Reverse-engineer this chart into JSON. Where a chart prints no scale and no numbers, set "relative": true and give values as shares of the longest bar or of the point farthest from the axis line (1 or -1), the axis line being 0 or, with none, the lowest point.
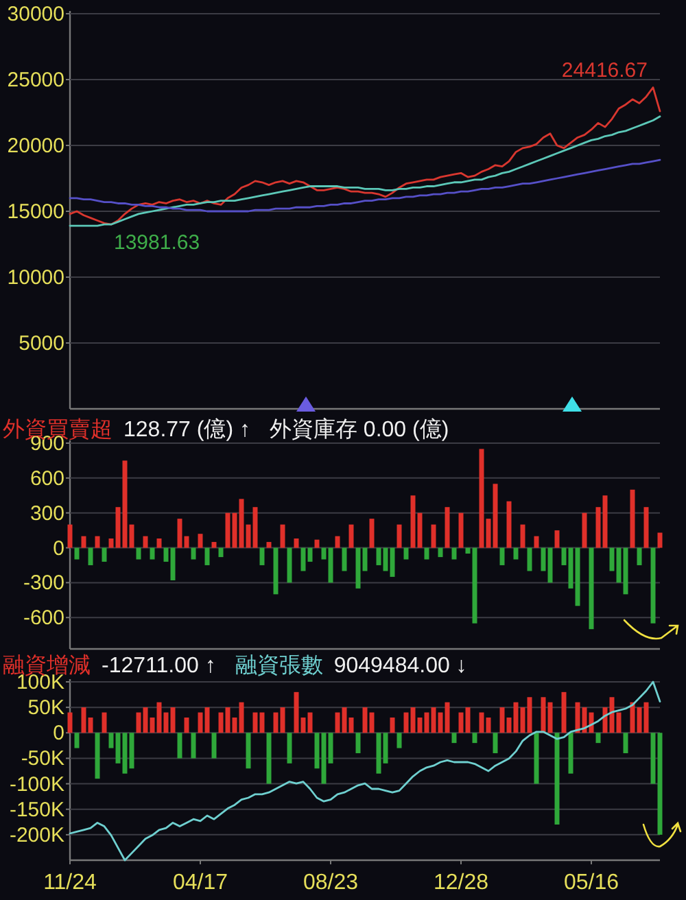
{
  "chart_data": [
    {
      "type": "line",
      "categories": [
        null,
        null,
        null,
        null,
        null,
        null,
        null,
        null,
        null,
        null,
        null,
        null,
        null,
        null,
        null,
        null,
        null,
        null,
        null,
        null,
        null,
        null,
        null,
        null,
        null,
        null,
        null,
        null,
        null,
        null,
        null,
        null,
        null,
        null,
        null,
        null,
        null,
        null,
        null,
        null,
        null,
        null,
        null,
        null,
        null,
        null,
        null,
        null,
        null,
        null,
        null,
        null,
        null,
        null,
        null,
        null,
        null,
        null,
        null,
        null,
        null,
        null,
        null,
        null,
        null,
        null,
        null,
        null,
        null,
        null,
        null,
        null,
        null,
        null,
        null,
        null,
        null,
        null,
        null,
        null,
        null,
        null,
        null,
        null,
        null,
        null,
        null
      ],
      "ylim": [
        0,
        30000
      ],
      "yticks": [
        5000,
        10000,
        15000,
        20000,
        25000,
        30000
      ],
      "grid": "y",
      "tick_labels": "y",
      "annotations": [
        "24416.67",
        "13981.63"
      ],
      "series": [
        {
          "color": "#d9372f",
          "values": [
            14800,
            15000,
            14700,
            14500,
            14300,
            14100,
            14000,
            14300,
            14800,
            15200,
            15500,
            15600,
            15500,
            15700,
            15600,
            15800,
            15900,
            15700,
            15800,
            15600,
            15800,
            15600,
            15500,
            16000,
            16300,
            16800,
            17000,
            17300,
            17200,
            17000,
            17200,
            17300,
            17100,
            17300,
            17200,
            16900,
            16600,
            16600,
            16700,
            16800,
            16700,
            16500,
            16500,
            16400,
            16400,
            16300,
            16100,
            16400,
            16800,
            17100,
            17200,
            17300,
            17400,
            17400,
            17600,
            17700,
            17800,
            17900,
            17600,
            17700,
            18000,
            18200,
            18500,
            18400,
            18800,
            19500,
            19800,
            19900,
            20100,
            20600,
            20900,
            20000,
            19800,
            20200,
            20600,
            20800,
            21200,
            21700,
            21400,
            22000,
            22800,
            23100,
            23500,
            23200,
            23700,
            24400,
            22600
          ]
        },
        {
          "color": "#5cc8b8",
          "values": [
            13900,
            13900,
            13900,
            13900,
            13900,
            14000,
            14000,
            14200,
            14400,
            14600,
            14800,
            14900,
            15000,
            15100,
            15200,
            15300,
            15400,
            15500,
            15500,
            15600,
            15700,
            15700,
            15800,
            15800,
            15800,
            15900,
            16000,
            16100,
            16200,
            16300,
            16400,
            16500,
            16600,
            16700,
            16800,
            16900,
            16900,
            16900,
            16900,
            16900,
            16800,
            16800,
            16800,
            16700,
            16700,
            16700,
            16600,
            16600,
            16700,
            16700,
            16800,
            16800,
            16900,
            16900,
            17000,
            17100,
            17200,
            17200,
            17300,
            17400,
            17400,
            17600,
            17700,
            17900,
            18000,
            18200,
            18400,
            18600,
            18800,
            19000,
            19200,
            19400,
            19600,
            19800,
            20000,
            20200,
            20400,
            20500,
            20700,
            20800,
            21000,
            21100,
            21300,
            21500,
            21700,
            21900,
            22200
          ]
        },
        {
          "color": "#5650c8",
          "values": [
            16000,
            16000,
            15900,
            15900,
            15800,
            15700,
            15700,
            15600,
            15600,
            15500,
            15500,
            15400,
            15400,
            15300,
            15300,
            15200,
            15200,
            15100,
            15100,
            15100,
            15000,
            15000,
            15000,
            15000,
            15000,
            15000,
            15000,
            15100,
            15100,
            15100,
            15200,
            15200,
            15200,
            15300,
            15300,
            15300,
            15400,
            15400,
            15500,
            15500,
            15600,
            15600,
            15700,
            15800,
            15800,
            15900,
            15900,
            16000,
            16000,
            16100,
            16100,
            16200,
            16200,
            16300,
            16300,
            16400,
            16400,
            16500,
            16500,
            16600,
            16700,
            16700,
            16800,
            16800,
            16900,
            17000,
            17100,
            17100,
            17200,
            17300,
            17400,
            17500,
            17600,
            17700,
            17800,
            17900,
            18000,
            18100,
            18200,
            18300,
            18400,
            18500,
            18600,
            18600,
            18700,
            18800,
            18900
          ]
        }
      ]
    },
    {
      "type": "bar",
      "categories": [
        null,
        null,
        null,
        null,
        null,
        null,
        null,
        null,
        null,
        null,
        null,
        null,
        null,
        null,
        null,
        null,
        null,
        null,
        null,
        null,
        null,
        null,
        null,
        null,
        null,
        null,
        null,
        null,
        null,
        null,
        null,
        null,
        null,
        null,
        null,
        null,
        null,
        null,
        null,
        null,
        null,
        null,
        null,
        null,
        null,
        null,
        null,
        null,
        null,
        null,
        null,
        null,
        null,
        null,
        null,
        null,
        null,
        null,
        null,
        null,
        null,
        null,
        null,
        null,
        null,
        null,
        null,
        null,
        null,
        null,
        null,
        null,
        null,
        null,
        null,
        null,
        null,
        null,
        null,
        null,
        null,
        null,
        null,
        null,
        null,
        null,
        null
      ],
      "ylim": [
        -870,
        900
      ],
      "yticks": [
        -600,
        -300,
        0,
        300,
        600,
        900
      ],
      "grid": "y",
      "tick_labels": "y",
      "legend": "top left",
      "annotations": [
        "128.77 (億) ↑",
        "外資庫存 0.00 (億)"
      ],
      "series": [
        {
          "name": "外資買賣超",
          "color": "#e0302a",
          "values": [
            200,
            -100,
            100,
            -150,
            100,
            -120,
            80,
            350,
            750,
            200,
            -100,
            100,
            -100,
            80,
            -120,
            -280,
            250,
            100,
            -100,
            120,
            -150,
            50,
            -80,
            300,
            300,
            420,
            200,
            350,
            -150,
            50,
            -400,
            200,
            -300,
            80,
            -200,
            -120,
            70,
            -100,
            -300,
            100,
            -200,
            200,
            -350,
            -200,
            250,
            -150,
            -200,
            -250,
            200,
            -100,
            450,
            300,
            -100,
            200,
            -80,
            350,
            -100,
            300,
            -50,
            -650,
            850,
            250,
            550,
            -150,
            400,
            -100,
            200,
            -200,
            100,
            -200,
            -300,
            150,
            -150,
            -350,
            -500,
            300,
            -700,
            350,
            450,
            -200,
            -300,
            -400,
            500,
            -150,
            350,
            -650,
            130
          ],
          "colors": [
            "#e0302a",
            "#2fa83a",
            "#e0302a",
            "#2fa83a",
            "#e0302a",
            "#2fa83a",
            "#e0302a",
            "#e0302a",
            "#e0302a",
            "#e0302a",
            "#2fa83a",
            "#e0302a",
            "#2fa83a",
            "#e0302a",
            "#2fa83a",
            "#2fa83a",
            "#e0302a",
            "#e0302a",
            "#2fa83a",
            "#e0302a",
            "#2fa83a",
            "#e0302a",
            "#2fa83a",
            "#e0302a",
            "#e0302a",
            "#e0302a",
            "#e0302a",
            "#e0302a",
            "#2fa83a",
            "#e0302a",
            "#2fa83a",
            "#e0302a",
            "#2fa83a",
            "#e0302a",
            "#2fa83a",
            "#2fa83a",
            "#e0302a",
            "#2fa83a",
            "#2fa83a",
            "#e0302a",
            "#2fa83a",
            "#e0302a",
            "#2fa83a",
            "#2fa83a",
            "#e0302a",
            "#2fa83a",
            "#2fa83a",
            "#2fa83a",
            "#e0302a",
            "#2fa83a",
            "#e0302a",
            "#e0302a",
            "#2fa83a",
            "#e0302a",
            "#2fa83a",
            "#e0302a",
            "#2fa83a",
            "#e0302a",
            "#2fa83a",
            "#2fa83a",
            "#e0302a",
            "#e0302a",
            "#e0302a",
            "#2fa83a",
            "#e0302a",
            "#2fa83a",
            "#e0302a",
            "#2fa83a",
            "#e0302a",
            "#2fa83a",
            "#2fa83a",
            "#e0302a",
            "#2fa83a",
            "#2fa83a",
            "#2fa83a",
            "#e0302a",
            "#2fa83a",
            "#e0302a",
            "#e0302a",
            "#2fa83a",
            "#2fa83a",
            "#2fa83a",
            "#e0302a",
            "#2fa83a",
            "#e0302a",
            "#2fa83a",
            "#e0302a"
          ]
        }
      ]
    },
    {
      "type": "bar",
      "categories": [
        "11/24",
        null,
        null,
        null,
        null,
        null,
        null,
        null,
        null,
        null,
        null,
        null,
        null,
        null,
        null,
        null,
        null,
        null,
        null,
        "04/17",
        null,
        null,
        null,
        null,
        null,
        null,
        null,
        null,
        null,
        null,
        null,
        null,
        null,
        null,
        null,
        null,
        null,
        null,
        "08/23",
        null,
        null,
        null,
        null,
        null,
        null,
        null,
        null,
        null,
        null,
        null,
        null,
        null,
        null,
        null,
        null,
        null,
        null,
        "12/28",
        null,
        null,
        null,
        null,
        null,
        null,
        null,
        null,
        null,
        null,
        null,
        null,
        null,
        null,
        null,
        null,
        null,
        null,
        "05/16",
        null,
        null,
        null,
        null,
        null,
        null,
        null,
        null,
        null,
        null
      ],
      "ylim": [
        -250000,
        100000
      ],
      "yticks": [
        {
          "value": -200000,
          "label": "-200K"
        },
        {
          "value": -150000,
          "label": "-150K"
        },
        {
          "value": -100000,
          "label": "-100K"
        },
        {
          "value": -50000,
          "label": "-50K"
        },
        0,
        {
          "value": 50000,
          "label": "50K"
        },
        {
          "value": 100000,
          "label": "100K"
        }
      ],
      "grid": "y",
      "legend": "top left",
      "annotations": [
        "-12711.00 ↑"
      ],
      "series": [
        {
          "name": "融資增減",
          "color": "#e0302a",
          "values": [
            40000,
            -30000,
            50000,
            30000,
            -90000,
            40000,
            -30000,
            -60000,
            -80000,
            -70000,
            40000,
            50000,
            30000,
            60000,
            40000,
            50000,
            -50000,
            30000,
            -50000,
            40000,
            50000,
            -50000,
            40000,
            50000,
            30000,
            60000,
            -70000,
            40000,
            40000,
            -100000,
            40000,
            50000,
            -60000,
            80000,
            30000,
            40000,
            -70000,
            -100000,
            -60000,
            40000,
            50000,
            30000,
            -40000,
            50000,
            40000,
            -80000,
            -60000,
            30000,
            -30000,
            40000,
            50000,
            30000,
            40000,
            50000,
            40000,
            60000,
            -20000,
            40000,
            50000,
            -20000,
            40000,
            30000,
            -40000,
            50000,
            30000,
            60000,
            50000,
            70000,
            -100000,
            70000,
            60000,
            -180000,
            80000,
            -80000,
            60000,
            50000,
            40000,
            -20000,
            50000,
            70000,
            40000,
            -40000,
            60000,
            50000,
            60000,
            -100000,
            -200000
          ],
          "colors": [
            "#e0302a",
            "#2fa83a",
            "#e0302a",
            "#e0302a",
            "#2fa83a",
            "#e0302a",
            "#2fa83a",
            "#2fa83a",
            "#2fa83a",
            "#2fa83a",
            "#e0302a",
            "#e0302a",
            "#e0302a",
            "#e0302a",
            "#e0302a",
            "#e0302a",
            "#2fa83a",
            "#e0302a",
            "#2fa83a",
            "#e0302a",
            "#e0302a",
            "#2fa83a",
            "#e0302a",
            "#e0302a",
            "#e0302a",
            "#e0302a",
            "#2fa83a",
            "#e0302a",
            "#e0302a",
            "#2fa83a",
            "#e0302a",
            "#e0302a",
            "#2fa83a",
            "#e0302a",
            "#e0302a",
            "#e0302a",
            "#2fa83a",
            "#2fa83a",
            "#2fa83a",
            "#e0302a",
            "#e0302a",
            "#e0302a",
            "#2fa83a",
            "#e0302a",
            "#e0302a",
            "#2fa83a",
            "#2fa83a",
            "#e0302a",
            "#2fa83a",
            "#e0302a",
            "#e0302a",
            "#e0302a",
            "#e0302a",
            "#e0302a",
            "#e0302a",
            "#e0302a",
            "#2fa83a",
            "#e0302a",
            "#e0302a",
            "#2fa83a",
            "#e0302a",
            "#e0302a",
            "#2fa83a",
            "#e0302a",
            "#e0302a",
            "#e0302a",
            "#e0302a",
            "#e0302a",
            "#2fa83a",
            "#e0302a",
            "#e0302a",
            "#2fa83a",
            "#e0302a",
            "#2fa83a",
            "#e0302a",
            "#e0302a",
            "#e0302a",
            "#2fa83a",
            "#e0302a",
            "#e0302a",
            "#e0302a",
            "#2fa83a",
            "#e0302a",
            "#e0302a",
            "#e0302a",
            "#2fa83a",
            "#2fa83a"
          ]
        }
      ]
    },
    {
      "type": "line",
      "relative": true,
      "tick_labels": false,
      "legend": "top left",
      "categories": [
        null,
        null,
        null,
        null,
        null,
        null,
        null,
        null,
        null,
        null,
        null,
        null,
        null,
        null,
        null,
        null,
        null,
        null,
        null,
        null,
        null,
        null,
        null,
        null,
        null,
        null,
        null,
        null,
        null,
        null,
        null,
        null,
        null,
        null,
        null,
        null,
        null,
        null,
        null,
        null,
        null,
        null,
        null,
        null,
        null,
        null,
        null,
        null,
        null,
        null,
        null,
        null,
        null,
        null,
        null,
        null,
        null,
        null,
        null,
        null,
        null,
        null,
        null,
        null,
        null,
        null,
        null,
        null,
        null,
        null,
        null,
        null,
        null,
        null,
        null,
        null,
        null,
        null,
        null,
        null,
        null,
        null,
        null,
        null,
        null,
        null,
        null
      ],
      "annotations": [
        "9049484.00 ↓"
      ],
      "series": [
        {
          "name": "融資張數",
          "color": "#6fd0d0",
          "values": [
            0.15,
            0.16,
            0.17,
            0.18,
            0.21,
            0.19,
            0.14,
            0.07,
            0,
            0.04,
            0.08,
            0.12,
            0.14,
            0.17,
            0.18,
            0.21,
            0.19,
            0.21,
            0.23,
            0.22,
            0.25,
            0.23,
            0.26,
            0.29,
            0.31,
            0.34,
            0.35,
            0.37,
            0.37,
            0.38,
            0.4,
            0.42,
            0.44,
            0.43,
            0.44,
            0.4,
            0.35,
            0.33,
            0.34,
            0.37,
            0.38,
            0.4,
            0.42,
            0.43,
            0.4,
            0.4,
            0.39,
            0.38,
            0.39,
            0.43,
            0.47,
            0.5,
            0.52,
            0.53,
            0.55,
            0.56,
            0.55,
            0.55,
            0.55,
            0.54,
            0.52,
            0.5,
            0.53,
            0.55,
            0.57,
            0.61,
            0.67,
            0.7,
            0.72,
            0.72,
            0.7,
            0.68,
            0.69,
            0.72,
            0.73,
            0.74,
            0.76,
            0.78,
            0.81,
            0.83,
            0.84,
            0.85,
            0.87,
            0.91,
            0.95,
            1.0,
            0.89
          ]
        }
      ]
    }
  ]
}
